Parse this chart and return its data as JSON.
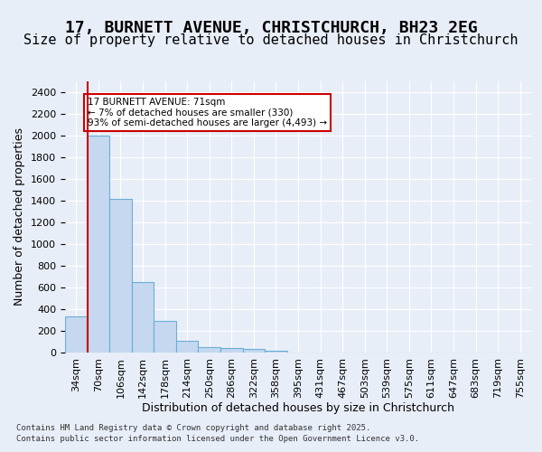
{
  "title_line1": "17, BURNETT AVENUE, CHRISTCHURCH, BH23 2EG",
  "title_line2": "Size of property relative to detached houses in Christchurch",
  "xlabel": "Distribution of detached houses by size in Christchurch",
  "ylabel": "Number of detached properties",
  "categories": [
    "34sqm",
    "70sqm",
    "106sqm",
    "142sqm",
    "178sqm",
    "214sqm",
    "250sqm",
    "286sqm",
    "322sqm",
    "358sqm",
    "395sqm",
    "431sqm",
    "467sqm",
    "503sqm",
    "539sqm",
    "575sqm",
    "611sqm",
    "647sqm",
    "683sqm",
    "719sqm",
    "755sqm"
  ],
  "values": [
    330,
    2000,
    1420,
    650,
    290,
    105,
    50,
    45,
    30,
    15,
    0,
    0,
    0,
    0,
    0,
    0,
    0,
    0,
    0,
    0,
    0
  ],
  "bar_color": "#c5d8f0",
  "bar_edge_color": "#6aaed6",
  "highlight_bar_index": 1,
  "red_line_x": 1,
  "annotation_text": "17 BURNETT AVENUE: 71sqm\n← 7% of detached houses are smaller (330)\n93% of semi-detached houses are larger (4,493) →",
  "annotation_box_color": "#ffffff",
  "annotation_box_edge_color": "#cc0000",
  "ylim": [
    0,
    2500
  ],
  "yticks": [
    0,
    200,
    400,
    600,
    800,
    1000,
    1200,
    1400,
    1600,
    1800,
    2000,
    2200,
    2400
  ],
  "background_color": "#e8eef8",
  "grid_color": "#ffffff",
  "footer_line1": "Contains HM Land Registry data © Crown copyright and database right 2025.",
  "footer_line2": "Contains public sector information licensed under the Open Government Licence v3.0.",
  "title_fontsize": 13,
  "subtitle_fontsize": 11,
  "tick_fontsize": 8,
  "label_fontsize": 9
}
